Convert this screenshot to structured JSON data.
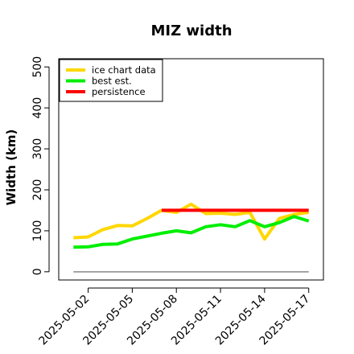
{
  "chart_data": {
    "type": "line",
    "title": "MIZ width",
    "xlabel": "",
    "ylabel": "Width (km)",
    "x_range": [
      "2025-04-30",
      "2025-05-18"
    ],
    "ylim": [
      -20,
      520
    ],
    "yticks": [
      0,
      100,
      200,
      300,
      400,
      500
    ],
    "xticks": [
      "2025-05-02",
      "2025-05-05",
      "2025-05-08",
      "2025-05-11",
      "2025-05-14",
      "2025-05-17"
    ],
    "grid": false,
    "legend_position": "top-left",
    "series": [
      {
        "name": "ice chart data",
        "color": "#FFD700",
        "x": [
          "2025-05-01",
          "2025-05-02",
          "2025-05-03",
          "2025-05-04",
          "2025-05-05",
          "2025-05-06",
          "2025-05-07",
          "2025-05-08",
          "2025-05-09",
          "2025-05-10",
          "2025-05-11",
          "2025-05-12",
          "2025-05-13",
          "2025-05-14",
          "2025-05-15",
          "2025-05-16",
          "2025-05-17"
        ],
        "y": [
          83,
          85,
          103,
          113,
          112,
          130,
          150,
          145,
          165,
          142,
          143,
          140,
          145,
          80,
          130,
          140,
          145
        ]
      },
      {
        "name": "best est.",
        "color": "#00EE00",
        "x": [
          "2025-05-01",
          "2025-05-02",
          "2025-05-03",
          "2025-05-04",
          "2025-05-05",
          "2025-05-06",
          "2025-05-07",
          "2025-05-08",
          "2025-05-09",
          "2025-05-10",
          "2025-05-11",
          "2025-05-12",
          "2025-05-13",
          "2025-05-14",
          "2025-05-15",
          "2025-05-16",
          "2025-05-17"
        ],
        "y": [
          60,
          61,
          67,
          68,
          80,
          87,
          94,
          100,
          95,
          110,
          115,
          110,
          125,
          110,
          120,
          135,
          124
        ]
      },
      {
        "name": "persistence",
        "color": "#FF0000",
        "x": [
          "2025-05-07",
          "2025-05-17"
        ],
        "y": [
          150,
          150
        ]
      }
    ],
    "reference_line": {
      "y": 0,
      "x": [
        "2025-05-01",
        "2025-05-17"
      ],
      "color": "#888888"
    }
  }
}
